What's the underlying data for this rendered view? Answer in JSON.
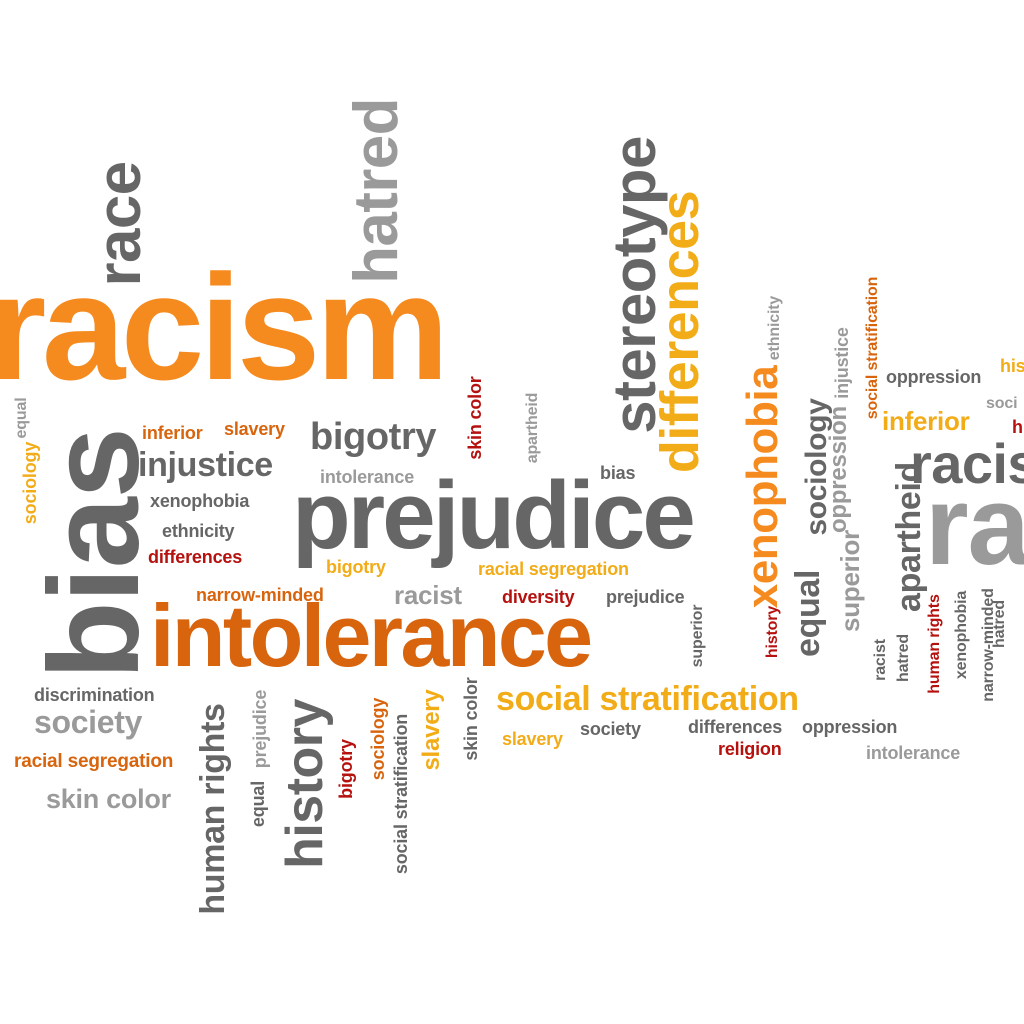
{
  "colors": {
    "orange": "#f58a1f",
    "dark_orange": "#d8650e",
    "amber": "#f2ac18",
    "red": "#b5120f",
    "dark_gray": "#666666",
    "light_gray": "#9a9a9a"
  },
  "words": [
    {
      "text": "racism",
      "color": "#f58a1f"
    },
    {
      "text": "bias",
      "color": "#666666"
    },
    {
      "text": "prejudice",
      "color": "#666666"
    },
    {
      "text": "intolerance",
      "color": "#d8650e"
    },
    {
      "text": "race",
      "color": "#666666"
    },
    {
      "text": "hatred",
      "color": "#9a9a9a"
    },
    {
      "text": "stereotype",
      "color": "#666666"
    },
    {
      "text": "differences",
      "color": "#f2ac18"
    },
    {
      "text": "xenophobia",
      "color": "#f58a1f"
    },
    {
      "text": "history",
      "color": "#666666"
    },
    {
      "text": "human rights",
      "color": "#666666"
    },
    {
      "text": "social stratification",
      "color": "#f2ac18"
    },
    {
      "text": "bigotry",
      "color": "#666666"
    },
    {
      "text": "injustice",
      "color": "#666666"
    },
    {
      "text": "society",
      "color": "#9a9a9a"
    },
    {
      "text": "skin color",
      "color": "#9a9a9a"
    },
    {
      "text": "racial segregation",
      "color": "#d8650e"
    },
    {
      "text": "discrimination",
      "color": "#666666"
    },
    {
      "text": "inferior",
      "color": "#d8650e"
    },
    {
      "text": "slavery",
      "color": "#d8650e"
    },
    {
      "text": "xenophobia",
      "color": "#666666"
    },
    {
      "text": "ethnicity",
      "color": "#666666"
    },
    {
      "text": "differences",
      "color": "#b5120f"
    },
    {
      "text": "intolerance",
      "color": "#9a9a9a"
    },
    {
      "text": "skin color",
      "color": "#b5120f"
    },
    {
      "text": "apartheid",
      "color": "#9a9a9a"
    },
    {
      "text": "bias",
      "color": "#666666"
    },
    {
      "text": "bigotry",
      "color": "#f2ac18"
    },
    {
      "text": "racial segregation",
      "color": "#f2ac18"
    },
    {
      "text": "narrow-minded",
      "color": "#d8650e"
    },
    {
      "text": "racist",
      "color": "#9a9a9a"
    },
    {
      "text": "diversity",
      "color": "#b5120f"
    },
    {
      "text": "prejudice",
      "color": "#666666"
    },
    {
      "text": "slavery",
      "color": "#f2ac18"
    },
    {
      "text": "society",
      "color": "#666666"
    },
    {
      "text": "differences",
      "color": "#666666"
    },
    {
      "text": "oppression",
      "color": "#666666"
    },
    {
      "text": "religion",
      "color": "#b5120f"
    },
    {
      "text": "intolerance",
      "color": "#9a9a9a"
    },
    {
      "text": "prejudice",
      "color": "#9a9a9a"
    },
    {
      "text": "equal",
      "color": "#666666"
    },
    {
      "text": "bigotry",
      "color": "#b5120f"
    },
    {
      "text": "sociology",
      "color": "#d8650e"
    },
    {
      "text": "social stratification",
      "color": "#666666"
    },
    {
      "text": "slavery",
      "color": "#f2ac18"
    },
    {
      "text": "skin color",
      "color": "#666666"
    },
    {
      "text": "sociology",
      "color": "#f2ac18"
    },
    {
      "text": "equal",
      "color": "#9a9a9a"
    },
    {
      "text": "superior",
      "color": "#666666"
    },
    {
      "text": "history",
      "color": "#b5120f"
    },
    {
      "text": "equal",
      "color": "#666666"
    },
    {
      "text": "sociology",
      "color": "#666666"
    },
    {
      "text": "ethnicity",
      "color": "#9a9a9a"
    },
    {
      "text": "superior",
      "color": "#9a9a9a"
    },
    {
      "text": "oppression",
      "color": "#9a9a9a"
    },
    {
      "text": "injustice",
      "color": "#9a9a9a"
    },
    {
      "text": "social stratification",
      "color": "#d8650e"
    },
    {
      "text": "apartheid",
      "color": "#666666"
    },
    {
      "text": "racist",
      "color": "#666666"
    },
    {
      "text": "hatred",
      "color": "#666666"
    },
    {
      "text": "human rights",
      "color": "#b5120f"
    },
    {
      "text": "xenophobia",
      "color": "#666666"
    },
    {
      "text": "narrow-minded",
      "color": "#666666"
    },
    {
      "text": "hatred",
      "color": "#666666"
    },
    {
      "text": "oppression",
      "color": "#666666"
    },
    {
      "text": "inferior",
      "color": "#f2ac18"
    },
    {
      "text": "racis",
      "color": "#666666"
    },
    {
      "text": "ra",
      "color": "#9a9a9a"
    },
    {
      "text": "his",
      "color": "#f2ac18"
    },
    {
      "text": "soci",
      "color": "#9a9a9a"
    },
    {
      "text": "h",
      "color": "#b5120f"
    }
  ]
}
